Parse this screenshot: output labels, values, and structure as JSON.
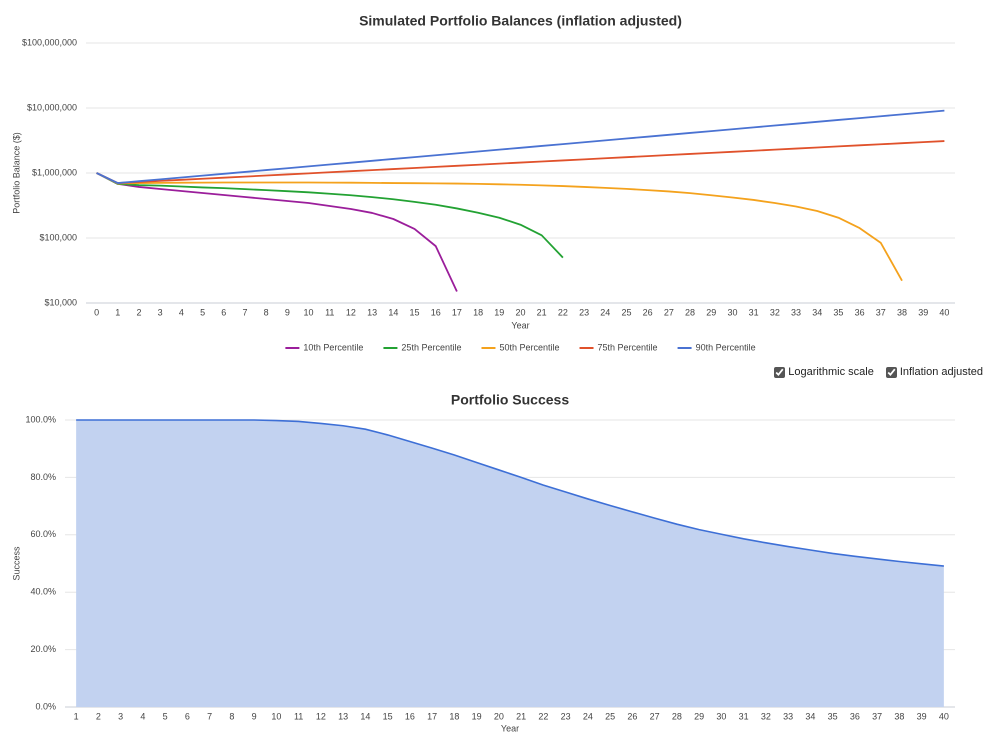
{
  "chart_data": [
    {
      "type": "line",
      "title": "Simulated Portfolio Balances (inflation adjusted)",
      "xlabel": "Year",
      "ylabel": "Portfolio Balance ($)",
      "categories": [
        0,
        1,
        2,
        3,
        4,
        5,
        6,
        7,
        8,
        9,
        10,
        11,
        12,
        13,
        14,
        15,
        16,
        17,
        18,
        19,
        20,
        21,
        22,
        23,
        24,
        25,
        26,
        27,
        28,
        29,
        30,
        31,
        32,
        33,
        34,
        35,
        36,
        37,
        38,
        39,
        40
      ],
      "log": true,
      "grid": true,
      "legend": "bottom",
      "ylim": [
        10000,
        100000000
      ],
      "yticks": [
        {
          "value": 10000,
          "label": "$10,000"
        },
        {
          "value": 100000,
          "label": "$100,000"
        },
        {
          "value": 1000000,
          "label": "$1,000,000"
        },
        {
          "value": 10000000,
          "label": "$10,000,000"
        },
        {
          "value": 100000000,
          "label": "$100,000,000"
        }
      ],
      "series": [
        {
          "name": "10th Percentile",
          "color": "#9b1e9b",
          "values": [
            1000000,
            680000,
            610000,
            567000,
            528000,
            492000,
            459000,
            427000,
            398000,
            371000,
            345000,
            311000,
            279000,
            243000,
            196000,
            138000,
            75000,
            15000,
            null,
            null,
            null,
            null,
            null,
            null,
            null,
            null,
            null,
            null,
            null,
            null,
            null,
            null,
            null,
            null,
            null,
            null,
            null,
            null,
            null,
            null,
            null
          ]
        },
        {
          "name": "25th Percentile",
          "color": "#23a233",
          "values": [
            1000000,
            680000,
            650000,
            640000,
            620000,
            600000,
            585000,
            565000,
            545000,
            525000,
            505000,
            480000,
            455000,
            425000,
            395000,
            360000,
            325000,
            285000,
            245000,
            205000,
            160000,
            110000,
            50000,
            null,
            null,
            null,
            null,
            null,
            null,
            null,
            null,
            null,
            null,
            null,
            null,
            null,
            null,
            null,
            null,
            null,
            null
          ]
        },
        {
          "name": "50th Percentile",
          "color": "#f4a21d",
          "values": [
            1000000,
            690000,
            700000,
            705000,
            710000,
            712000,
            715000,
            715000,
            715000,
            715000,
            715000,
            712000,
            710000,
            705000,
            700000,
            697000,
            693000,
            688000,
            680000,
            670000,
            660000,
            645000,
            630000,
            610000,
            590000,
            570000,
            545000,
            520000,
            490000,
            455000,
            420000,
            385000,
            345000,
            305000,
            260000,
            205000,
            142000,
            84000,
            22000,
            null,
            null
          ]
        },
        {
          "name": "75th Percentile",
          "color": "#e0512b",
          "values": [
            1000000,
            700000,
            727000,
            756000,
            785000,
            816000,
            847000,
            880000,
            915000,
            950000,
            987000,
            1026000,
            1066000,
            1107000,
            1150000,
            1195000,
            1242000,
            1290000,
            1340000,
            1392000,
            1447000,
            1503000,
            1561000,
            1622000,
            1685000,
            1751000,
            1819000,
            1890000,
            1963000,
            2040000,
            2119000,
            2202000,
            2287000,
            2376000,
            2469000,
            2565000,
            2665000,
            2768000,
            2876000,
            2988000,
            3100000
          ]
        },
        {
          "name": "90th Percentile",
          "color": "#4a72d2",
          "values": [
            1000000,
            700000,
            748000,
            798000,
            852000,
            910000,
            972000,
            1038000,
            1109000,
            1184000,
            1265000,
            1351000,
            1442000,
            1540000,
            1645000,
            1757000,
            1876000,
            2004000,
            2140000,
            2286000,
            2441000,
            2607000,
            2784000,
            2974000,
            3176000,
            3392000,
            3622000,
            3869000,
            4132000,
            4413000,
            4713000,
            5033000,
            5375000,
            5741000,
            6131000,
            6548000,
            6993000,
            7469000,
            7976000,
            8519000,
            9100000
          ]
        }
      ]
    },
    {
      "type": "area",
      "title": "Portfolio Success",
      "xlabel": "Year",
      "ylabel": "Success",
      "grid": true,
      "categories": [
        1,
        2,
        3,
        4,
        5,
        6,
        7,
        8,
        9,
        10,
        11,
        12,
        13,
        14,
        15,
        16,
        17,
        18,
        19,
        20,
        21,
        22,
        23,
        24,
        25,
        26,
        27,
        28,
        29,
        30,
        31,
        32,
        33,
        34,
        35,
        36,
        37,
        38,
        39,
        40
      ],
      "ylim": [
        0,
        100
      ],
      "yticks": [
        {
          "value": 0,
          "label": "0.0%"
        },
        {
          "value": 20,
          "label": "20.0%"
        },
        {
          "value": 40,
          "label": "40.0%"
        },
        {
          "value": 60,
          "label": "60.0%"
        },
        {
          "value": 80,
          "label": "80.0%"
        },
        {
          "value": 100,
          "label": "100.0%"
        }
      ],
      "color": "#3d6fd6",
      "fill": "#c2d2f0",
      "values": [
        100,
        100,
        100,
        100,
        100,
        100,
        100,
        100,
        100,
        99.8,
        99.5,
        98.8,
        98,
        96.8,
        94.8,
        92.5,
        90.2,
        87.8,
        85.2,
        82.6,
        80,
        77.3,
        74.9,
        72.5,
        70.2,
        68,
        65.8,
        63.7,
        61.8,
        60.2,
        58.6,
        57.2,
        55.9,
        54.7,
        53.5,
        52.5,
        51.6,
        50.7,
        49.9,
        49.1
      ]
    }
  ],
  "controls": [
    {
      "label": "Logarithmic scale",
      "checked": true
    },
    {
      "label": "Inflation adjusted",
      "checked": true
    }
  ]
}
